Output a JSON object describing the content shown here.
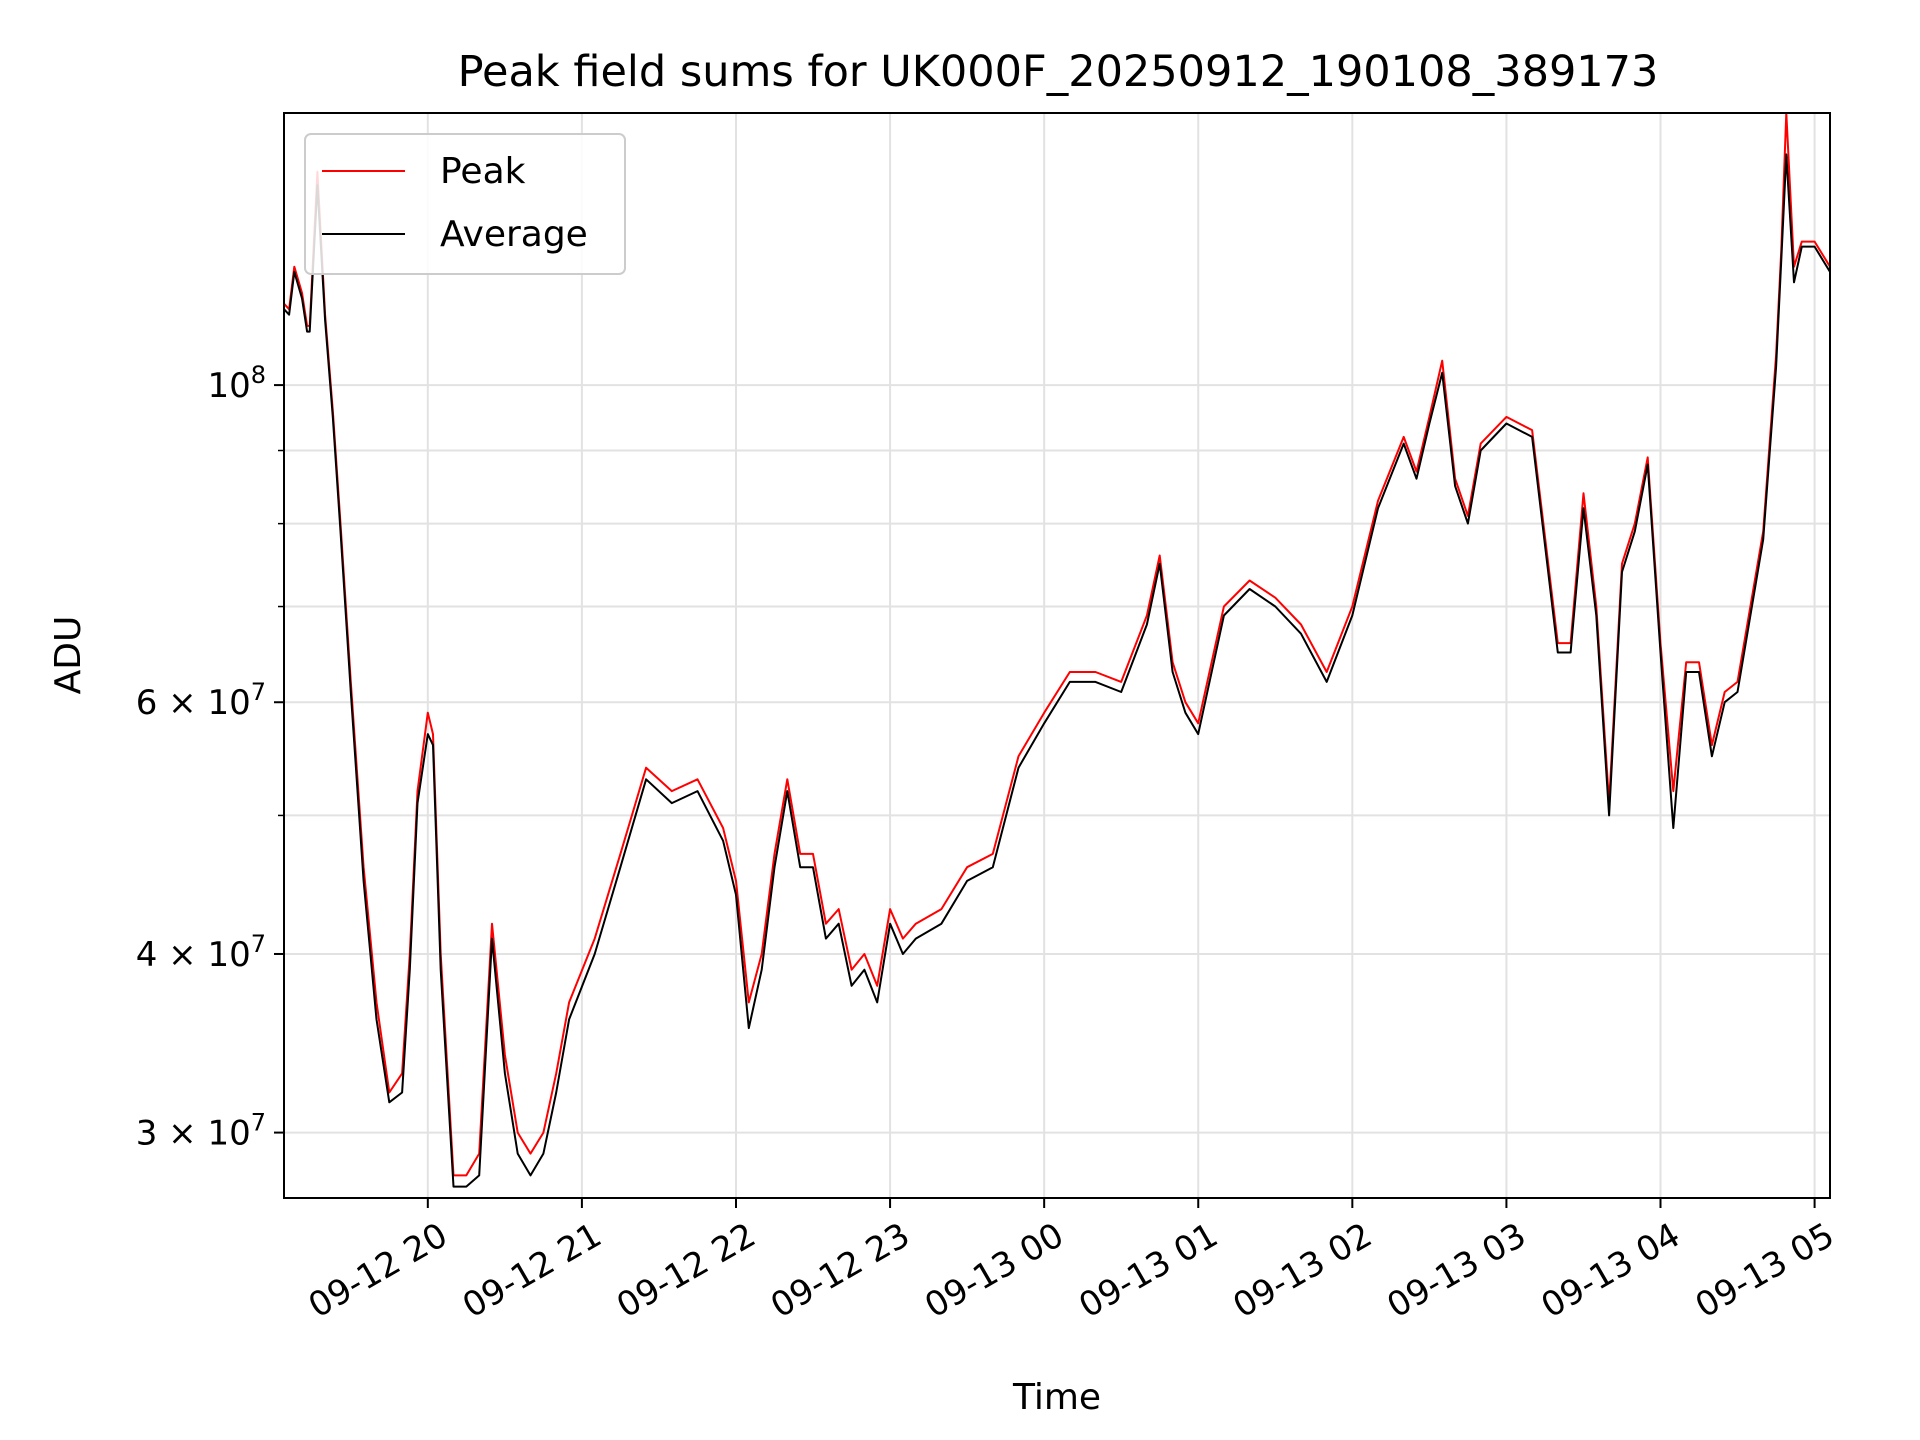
{
  "chart_data": {
    "type": "line",
    "title": "Peak field sums for UK000F_20250912_190108_389173",
    "xlabel": "Time",
    "ylabel": "ADU",
    "yscale": "log",
    "ylim": [
      27000000,
      155000000
    ],
    "xlim": [
      "2025-09-12 19:04",
      "2025-09-13 05:06"
    ],
    "grid": true,
    "legend_position": "upper-left",
    "x_ticks": [
      "09-12 20",
      "09-12 21",
      "09-12 22",
      "09-12 23",
      "09-13 00",
      "09-13 01",
      "09-13 02",
      "09-13 03",
      "09-13 04",
      "09-13 05"
    ],
    "y_ticks_labeled": [
      {
        "value": 30000000,
        "mantissa": "3",
        "exponent": "7"
      },
      {
        "value": 40000000,
        "mantissa": "4",
        "exponent": "7"
      },
      {
        "value": 60000000,
        "mantissa": "6",
        "exponent": "7"
      },
      {
        "value": 100000000,
        "mantissa": "",
        "exponent": "8"
      }
    ],
    "y_ticks_minor": [
      50000000,
      70000000,
      80000000,
      90000000
    ],
    "x": [
      "2025-09-12 19:04",
      "2025-09-12 19:06",
      "2025-09-12 19:08",
      "2025-09-12 19:11",
      "2025-09-12 19:13",
      "2025-09-12 19:14",
      "2025-09-12 19:17",
      "2025-09-12 19:20",
      "2025-09-12 19:23",
      "2025-09-12 19:26",
      "2025-09-12 19:30",
      "2025-09-12 19:35",
      "2025-09-12 19:40",
      "2025-09-12 19:45",
      "2025-09-12 19:50",
      "2025-09-12 19:53",
      "2025-09-12 19:56",
      "2025-09-12 20:00",
      "2025-09-12 20:02",
      "2025-09-12 20:05",
      "2025-09-12 20:10",
      "2025-09-12 20:15",
      "2025-09-12 20:20",
      "2025-09-12 20:25",
      "2025-09-12 20:30",
      "2025-09-12 20:35",
      "2025-09-12 20:40",
      "2025-09-12 20:45",
      "2025-09-12 20:50",
      "2025-09-12 20:55",
      "2025-09-12 21:05",
      "2025-09-12 21:15",
      "2025-09-12 21:25",
      "2025-09-12 21:35",
      "2025-09-12 21:45",
      "2025-09-12 21:55",
      "2025-09-12 22:00",
      "2025-09-12 22:05",
      "2025-09-12 22:10",
      "2025-09-12 22:15",
      "2025-09-12 22:20",
      "2025-09-12 22:25",
      "2025-09-12 22:30",
      "2025-09-12 22:35",
      "2025-09-12 22:40",
      "2025-09-12 22:45",
      "2025-09-12 22:50",
      "2025-09-12 22:55",
      "2025-09-12 23:00",
      "2025-09-12 23:05",
      "2025-09-12 23:10",
      "2025-09-12 23:20",
      "2025-09-12 23:30",
      "2025-09-12 23:40",
      "2025-09-12 23:50",
      "2025-09-13 00:00",
      "2025-09-13 00:10",
      "2025-09-13 00:20",
      "2025-09-13 00:30",
      "2025-09-13 00:40",
      "2025-09-13 00:45",
      "2025-09-13 00:50",
      "2025-09-13 00:55",
      "2025-09-13 01:00",
      "2025-09-13 01:10",
      "2025-09-13 01:20",
      "2025-09-13 01:30",
      "2025-09-13 01:40",
      "2025-09-13 01:50",
      "2025-09-13 02:00",
      "2025-09-13 02:10",
      "2025-09-13 02:20",
      "2025-09-13 02:25",
      "2025-09-13 02:30",
      "2025-09-13 02:35",
      "2025-09-13 02:40",
      "2025-09-13 02:45",
      "2025-09-13 02:50",
      "2025-09-13 03:00",
      "2025-09-13 03:10",
      "2025-09-13 03:20",
      "2025-09-13 03:25",
      "2025-09-13 03:30",
      "2025-09-13 03:35",
      "2025-09-13 03:40",
      "2025-09-13 03:45",
      "2025-09-13 03:50",
      "2025-09-13 03:55",
      "2025-09-13 04:00",
      "2025-09-13 04:05",
      "2025-09-13 04:10",
      "2025-09-13 04:15",
      "2025-09-13 04:20",
      "2025-09-13 04:25",
      "2025-09-13 04:30",
      "2025-09-13 04:40",
      "2025-09-13 04:45",
      "2025-09-13 04:47",
      "2025-09-13 04:49",
      "2025-09-13 04:52",
      "2025-09-13 04:55",
      "2025-09-13 05:00",
      "2025-09-13 05:06"
    ],
    "series": [
      {
        "name": "Peak",
        "color": "#ff0000",
        "values": [
          114000000,
          113000000,
          121000000,
          116000000,
          110000000,
          110000000,
          141000000,
          112000000,
          96000000,
          80000000,
          62000000,
          46000000,
          37000000,
          32000000,
          33000000,
          40000000,
          52000000,
          59000000,
          57000000,
          40000000,
          28000000,
          28000000,
          29000000,
          42000000,
          34000000,
          30000000,
          29000000,
          30000000,
          33000000,
          37000000,
          41000000,
          47000000,
          54000000,
          52000000,
          53000000,
          49000000,
          45000000,
          37000000,
          40000000,
          47000000,
          53000000,
          47000000,
          47000000,
          42000000,
          43000000,
          39000000,
          40000000,
          38000000,
          43000000,
          41000000,
          42000000,
          43000000,
          46000000,
          47000000,
          55000000,
          59000000,
          63000000,
          63000000,
          62000000,
          69000000,
          76000000,
          64000000,
          60000000,
          58000000,
          70000000,
          73000000,
          71000000,
          68000000,
          63000000,
          70000000,
          83000000,
          92000000,
          87000000,
          95000000,
          104000000,
          86000000,
          81000000,
          91000000,
          95000000,
          93000000,
          66000000,
          66000000,
          84000000,
          70000000,
          51000000,
          75000000,
          80000000,
          89000000,
          66000000,
          52000000,
          64000000,
          64000000,
          56000000,
          61000000,
          62000000,
          79000000,
          105000000,
          124000000,
          155000000,
          121000000,
          126000000,
          126000000,
          121000000
        ]
      },
      {
        "name": "Average",
        "color": "#000000",
        "values": [
          113000000,
          112000000,
          120000000,
          115000000,
          109000000,
          109000000,
          138000000,
          111000000,
          95000000,
          79000000,
          61000000,
          45000000,
          36000000,
          31500000,
          32000000,
          39000000,
          51000000,
          57000000,
          56000000,
          39000000,
          27500000,
          27500000,
          28000000,
          41000000,
          33000000,
          29000000,
          28000000,
          29000000,
          32000000,
          36000000,
          40000000,
          46000000,
          53000000,
          51000000,
          52000000,
          48000000,
          44000000,
          35500000,
          39000000,
          46000000,
          52000000,
          46000000,
          46000000,
          41000000,
          42000000,
          38000000,
          39000000,
          37000000,
          42000000,
          40000000,
          41000000,
          42000000,
          45000000,
          46000000,
          54000000,
          58000000,
          62000000,
          62000000,
          61000000,
          68000000,
          75000000,
          63000000,
          59000000,
          57000000,
          69000000,
          72000000,
          70000000,
          67000000,
          62000000,
          69000000,
          82000000,
          91000000,
          86000000,
          94000000,
          102000000,
          85000000,
          80000000,
          90000000,
          94000000,
          92000000,
          65000000,
          65000000,
          82000000,
          69000000,
          50000000,
          74000000,
          79000000,
          88000000,
          65000000,
          49000000,
          63000000,
          63000000,
          55000000,
          60000000,
          61000000,
          78000000,
          103000000,
          122000000,
          145000000,
          118000000,
          125000000,
          125000000,
          120000000
        ]
      }
    ]
  }
}
